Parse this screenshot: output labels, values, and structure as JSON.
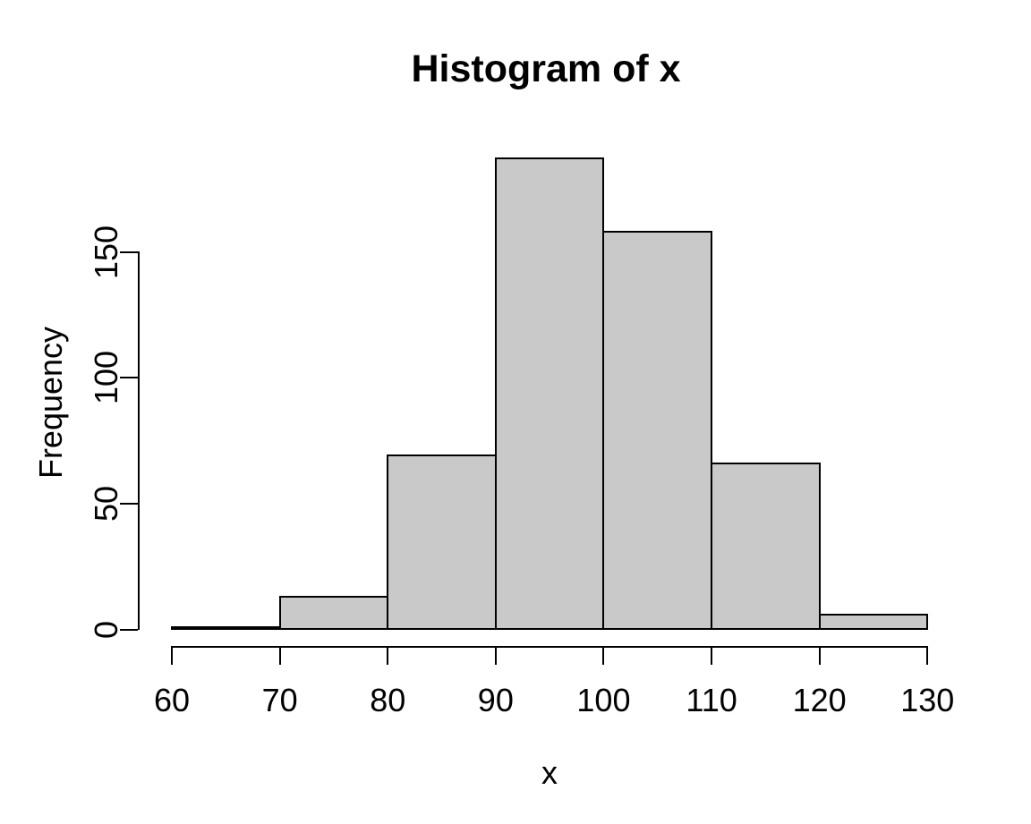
{
  "chart_data": {
    "type": "bar",
    "subtype": "histogram",
    "title": "Histogram of x",
    "xlabel": "x",
    "ylabel": "Frequency",
    "bin_edges": [
      60,
      70,
      80,
      90,
      100,
      110,
      120,
      130
    ],
    "categories": [
      "60-70",
      "70-80",
      "80-90",
      "90-100",
      "100-110",
      "110-120",
      "120-130"
    ],
    "values": [
      1,
      13,
      69,
      187,
      158,
      66,
      6
    ],
    "x_ticks": [
      "60",
      "70",
      "80",
      "90",
      "100",
      "110",
      "120",
      "130"
    ],
    "y_ticks": [
      "0",
      "50",
      "100",
      "150"
    ],
    "y_tick_values": [
      0,
      50,
      100,
      150
    ],
    "xlim": [
      60,
      130
    ],
    "ylim": [
      0,
      190
    ],
    "grid": "off",
    "legend": "none",
    "colors": {
      "bar_fill": "#C9C9C9",
      "bar_border": "#000000",
      "axis": "#000000",
      "text": "#000000",
      "background": "#FFFFFF"
    }
  }
}
